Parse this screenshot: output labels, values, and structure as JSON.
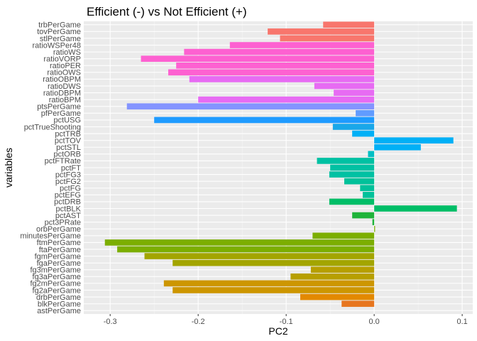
{
  "chart_data": {
    "type": "bar",
    "orientation": "horizontal",
    "title": "Efficient (-) vs Not Efficient (+)",
    "xlabel": "PC2",
    "ylabel": "variables",
    "xlim": [
      -0.33,
      0.112
    ],
    "xticks": [
      -0.3,
      -0.2,
      -0.1,
      0.0,
      0.1
    ],
    "xtick_labels": [
      "-0.3",
      "-0.2",
      "-0.1",
      "0.0",
      "0.1"
    ],
    "grid": true,
    "legend": "none",
    "categories": [
      "trbPerGame",
      "tovPerGame",
      "stlPerGame",
      "ratioWSPer48",
      "ratioWS",
      "ratioVORP",
      "ratioPER",
      "ratioOWS",
      "ratioOBPM",
      "ratioDWS",
      "ratioDBPM",
      "ratioBPM",
      "ptsPerGame",
      "pfPerGame",
      "pctUSG",
      "pctTrueShooting",
      "pctTRB",
      "pctTOV",
      "pctSTL",
      "pctORB",
      "pctFTRate",
      "pctFT",
      "pctFG3",
      "pctFG2",
      "pctFG",
      "pctEFG",
      "pctDRB",
      "pctBLK",
      "pctAST",
      "pct3PRate",
      "orbPerGame",
      "minutesPerGame",
      "ftmPerGame",
      "ftaPerGame",
      "fgmPerGame",
      "fgaPerGame",
      "fg3mPerGame",
      "fg3aPerGame",
      "fg2mPerGame",
      "fg2aPerGame",
      "drbPerGame",
      "blkPerGame",
      "astPerGame"
    ],
    "values": [
      -0.058,
      -0.121,
      -0.107,
      -0.164,
      -0.216,
      -0.265,
      -0.225,
      -0.234,
      -0.21,
      -0.068,
      -0.046,
      -0.2,
      -0.281,
      -0.021,
      -0.25,
      -0.047,
      -0.025,
      0.09,
      0.053,
      -0.007,
      -0.065,
      -0.05,
      -0.051,
      -0.034,
      -0.016,
      -0.013,
      -0.051,
      0.094,
      -0.025,
      -0.002,
      0.001,
      -0.07,
      -0.306,
      -0.292,
      -0.261,
      -0.229,
      -0.072,
      -0.095,
      -0.239,
      -0.229,
      -0.084,
      -0.037,
      0.0
    ],
    "colors": [
      "#F8766D",
      "#F8766D",
      "#F8766D",
      "#FD61D1",
      "#FD61D1",
      "#FD61D1",
      "#FD61D1",
      "#FD61D1",
      "#E76BF3",
      "#E76BF3",
      "#E76BF3",
      "#E76BF3",
      "#8494FF",
      "#619CFF",
      "#1F9BFF",
      "#19A7E9",
      "#00B0F6",
      "#00B0F6",
      "#00B0F6",
      "#00BFC4",
      "#00C1A3",
      "#00C1A3",
      "#00C1A3",
      "#00C19A",
      "#00C19A",
      "#00C19A",
      "#00BE67",
      "#00BE67",
      "#1FB33A",
      "#1FB33A",
      "#7CAE00",
      "#7CAE00",
      "#7CAE00",
      "#7CAE00",
      "#A3A500",
      "#A3A500",
      "#B79F00",
      "#B79F00",
      "#CD9600",
      "#CD9600",
      "#E38900",
      "#E7761F",
      "#F8766D"
    ]
  }
}
